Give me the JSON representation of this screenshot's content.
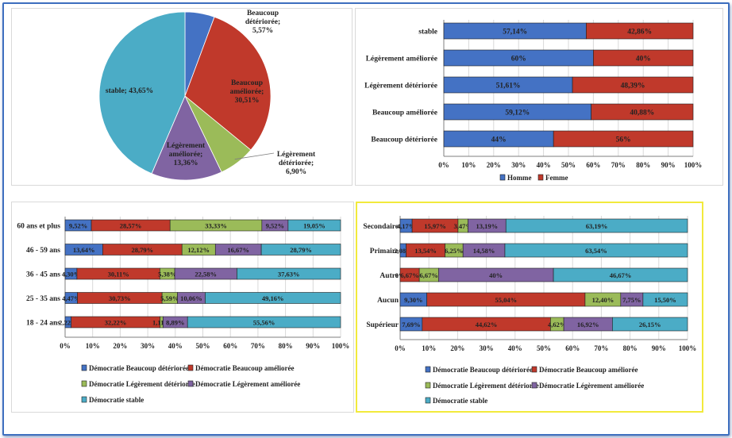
{
  "colors": {
    "c1": "#4472c4",
    "c2": "#c0392b",
    "c3": "#9bbb59",
    "c4": "#8064a2",
    "c5": "#4bacc6",
    "homme": "#4472c4",
    "femme": "#c0392b",
    "panel_border": "#d9d9d9",
    "yellow_border": "#f2ea3c",
    "frame_border": "#3e6fbf"
  },
  "chart_data": [
    {
      "type": "pie",
      "slices": [
        {
          "label": "Beaucoup détériorée; 5,57%",
          "value": 5.57,
          "color": "#4472c4"
        },
        {
          "label": "Beaucoup améliorée; 30,51%",
          "value": 30.51,
          "color": "#c0392b"
        },
        {
          "label": "Légèrement détériorée; 6,90%",
          "value": 6.9,
          "color": "#9bbb59"
        },
        {
          "label": "Légèrement améliorée; 13,36%",
          "value": 13.36,
          "color": "#8064a2"
        },
        {
          "label": "stable; 43,65%",
          "value": 43.65,
          "color": "#4bacc6"
        }
      ]
    },
    {
      "type": "bar",
      "stacked": "percent",
      "orientation": "horizontal",
      "categories": [
        "stable",
        "Légèrement améliorée",
        "Légèrement détériorée",
        "Beaucoup améliorée",
        "Beaucoup détériorée"
      ],
      "series": [
        {
          "name": "Homme",
          "values": [
            57.14,
            60,
            51.61,
            59.12,
            44
          ],
          "labels": [
            "57,14%",
            "60%",
            "51,61%",
            "59,12%",
            "44%"
          ]
        },
        {
          "name": "Femme",
          "values": [
            42.86,
            40,
            48.39,
            40.88,
            56
          ],
          "labels": [
            "42,86%",
            "40%",
            "48,39%",
            "40,88%",
            "56%"
          ]
        }
      ],
      "xlim": [
        0,
        100
      ],
      "xticks": [
        "0%",
        "10%",
        "20%",
        "30%",
        "40%",
        "50%",
        "60%",
        "70%",
        "80%",
        "90%",
        "100%"
      ],
      "legend": "bottom"
    },
    {
      "type": "bar",
      "stacked": "percent",
      "orientation": "horizontal",
      "categories": [
        "60 ans et plus",
        "46 - 59 ans",
        "36 - 45 ans",
        "25 - 35 ans",
        "18 - 24 ans"
      ],
      "series": [
        {
          "name": "Démocratie Beaucoup détériorée",
          "values": [
            9.52,
            13.64,
            4.3,
            4.47,
            2.22
          ],
          "labels": [
            "9,52%",
            "13,64%",
            "4,30%",
            "4,47%",
            "2,22%"
          ]
        },
        {
          "name": "Démocratie Beaucoup améliorée",
          "values": [
            28.57,
            28.79,
            30.11,
            30.73,
            32.22
          ],
          "labels": [
            "28,57%",
            "28,79%",
            "30,11%",
            "30,73%",
            "32,22%"
          ]
        },
        {
          "name": "Démocratie Légèrement détériorée",
          "values": [
            33.33,
            12.12,
            5.38,
            5.59,
            1.11
          ],
          "labels": [
            "33,33%",
            "12,12%",
            "5,38%",
            "5,59%",
            "1,11%"
          ]
        },
        {
          "name": "Démocratie Légèrement améliorée",
          "values": [
            9.52,
            16.67,
            22.58,
            10.06,
            8.89
          ],
          "labels": [
            "9,52%",
            "16,67%",
            "22,58%",
            "10,06%",
            "8,89%"
          ]
        },
        {
          "name": "Démocratie stable",
          "values": [
            19.05,
            28.79,
            37.63,
            49.16,
            55.56
          ],
          "labels": [
            "19,05%",
            "28,79%",
            "37,63%",
            "49,16%",
            "55,56%"
          ]
        }
      ],
      "xlim": [
        0,
        100
      ],
      "xticks": [
        "0%",
        "10%",
        "20%",
        "30%",
        "40%",
        "50%",
        "60%",
        "70%",
        "80%",
        "90%",
        "100%"
      ],
      "legend": "bottom"
    },
    {
      "type": "bar",
      "stacked": "percent",
      "orientation": "horizontal",
      "categories": [
        "Secondaire",
        "Primaire",
        "Autre",
        "Aucun",
        "Supérieur"
      ],
      "series": [
        {
          "name": "Démocratie Beaucoup détériorée",
          "values": [
            4.17,
            2.08,
            0,
            9.3,
            7.69
          ],
          "labels": [
            "4,17%",
            "2,08%",
            "0%",
            "9,30%",
            "7,69%"
          ]
        },
        {
          "name": "Démocratie Beaucoup améliorée",
          "values": [
            15.97,
            13.54,
            6.67,
            55.04,
            44.62
          ],
          "labels": [
            "15,97%",
            "13,54%",
            "6,67%",
            "55,04%",
            "44,62%"
          ]
        },
        {
          "name": "Démocratie Légèrement détériorée",
          "values": [
            3.47,
            6.25,
            6.67,
            12.4,
            4.62
          ],
          "labels": [
            "3,47%",
            "6,25%",
            "6,67%",
            "12,40%",
            "4,62%"
          ]
        },
        {
          "name": "Démocratie Légèrement améliorée",
          "values": [
            13.19,
            14.58,
            40,
            7.75,
            16.92
          ],
          "labels": [
            "13,19%",
            "14,58%",
            "40%",
            "7,75%",
            "16,92%"
          ]
        },
        {
          "name": "Démocratie stable",
          "values": [
            63.19,
            63.54,
            46.67,
            15.5,
            26.15
          ],
          "labels": [
            "63,19%",
            "63,54%",
            "46,67%",
            "15,50%",
            "26,15%"
          ]
        }
      ],
      "xlim": [
        0,
        100
      ],
      "xticks": [
        "0%",
        "10%",
        "20%",
        "30%",
        "40%",
        "50%",
        "60%",
        "70%",
        "80%",
        "90%",
        "100%"
      ],
      "legend": "bottom"
    }
  ]
}
